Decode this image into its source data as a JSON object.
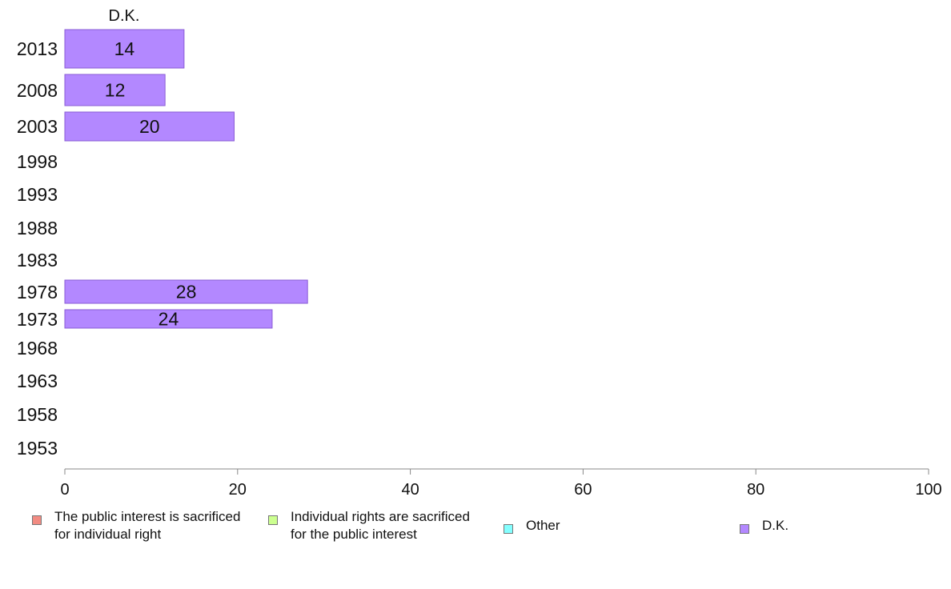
{
  "chart_data": {
    "type": "bar",
    "orientation": "horizontal",
    "panel_title": "D.K.",
    "categories": [
      "2013",
      "2008",
      "2003",
      "1998",
      "1993",
      "1988",
      "1983",
      "1978",
      "1973",
      "1968",
      "1963",
      "1958",
      "1953"
    ],
    "series": [
      {
        "name": "D.K.",
        "color": "#b388ff",
        "values": [
          13.8,
          11.6,
          19.6,
          null,
          null,
          null,
          null,
          28.1,
          24.0,
          null,
          null,
          null,
          null
        ],
        "labels": [
          "14",
          "12",
          "20",
          null,
          null,
          null,
          null,
          "28",
          "24",
          null,
          null,
          null,
          null
        ]
      }
    ],
    "xlim": [
      0,
      100
    ],
    "xticks": [
      "0",
      "20",
      "40",
      "60",
      "80",
      "100"
    ],
    "grid": false,
    "legend": {
      "position": "bottom",
      "items": [
        {
          "label": "The public interest is sacrificed\nfor individual right",
          "color": "#f28b82"
        },
        {
          "label": "Individual rights are sacrificed\nfor the public interest",
          "color": "#ccff90"
        },
        {
          "label": "Other",
          "color": "#84ffff"
        },
        {
          "label": "D.K.",
          "color": "#b388ff"
        }
      ]
    }
  }
}
